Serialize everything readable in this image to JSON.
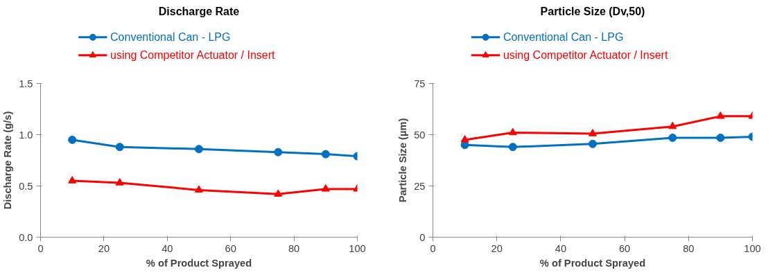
{
  "chart_data": [
    {
      "type": "line",
      "title": "Discharge Rate",
      "xlabel": "% of Product Sprayed",
      "ylabel": "Discharge Rate (g/s)",
      "x": [
        10,
        25,
        50,
        75,
        90,
        100
      ],
      "series": [
        {
          "name": "Conventional Can - LPG",
          "color": "#0070c0",
          "marker": "circle",
          "values": [
            0.95,
            0.88,
            0.86,
            0.83,
            0.81,
            0.79
          ]
        },
        {
          "name": "using Competitor Actuator / Insert",
          "color": "#ff0000",
          "marker": "triangle",
          "values": [
            0.55,
            0.53,
            0.46,
            0.42,
            0.47,
            0.47
          ]
        }
      ],
      "xlim": [
        0,
        100
      ],
      "xticks": [
        0,
        20,
        40,
        60,
        80,
        100
      ],
      "ylim": [
        0,
        1.5
      ],
      "yticks": [
        {
          "value": 0,
          "label": "0.0"
        },
        {
          "value": 0.5,
          "label": "0.5"
        },
        {
          "value": 1,
          "label": "1.0"
        },
        {
          "value": 1.5,
          "label": "1.5"
        }
      ],
      "grid": false,
      "legend": "top",
      "line_style": "solid"
    },
    {
      "type": "line",
      "title": "Particle Size (Dv,50)",
      "xlabel": "% of Product Sprayed",
      "ylabel": "Particle Size (µm)",
      "x": [
        10,
        25,
        50,
        75,
        90,
        100
      ],
      "series": [
        {
          "name": "Conventional Can - LPG",
          "color": "#0070c0",
          "marker": "circle",
          "values": [
            45,
            44,
            45.5,
            48.5,
            48.5,
            49
          ]
        },
        {
          "name": "using Competitor Actuator / Insert",
          "color": "#ff0000",
          "marker": "triangle",
          "values": [
            47.5,
            51,
            50.5,
            54,
            59,
            59
          ]
        }
      ],
      "xlim": [
        0,
        100
      ],
      "xticks": [
        0,
        20,
        40,
        60,
        80,
        100
      ],
      "ylim": [
        0,
        75
      ],
      "yticks": [
        0,
        25,
        50,
        75
      ],
      "grid": false,
      "legend": "top",
      "line_style": "solid"
    }
  ]
}
